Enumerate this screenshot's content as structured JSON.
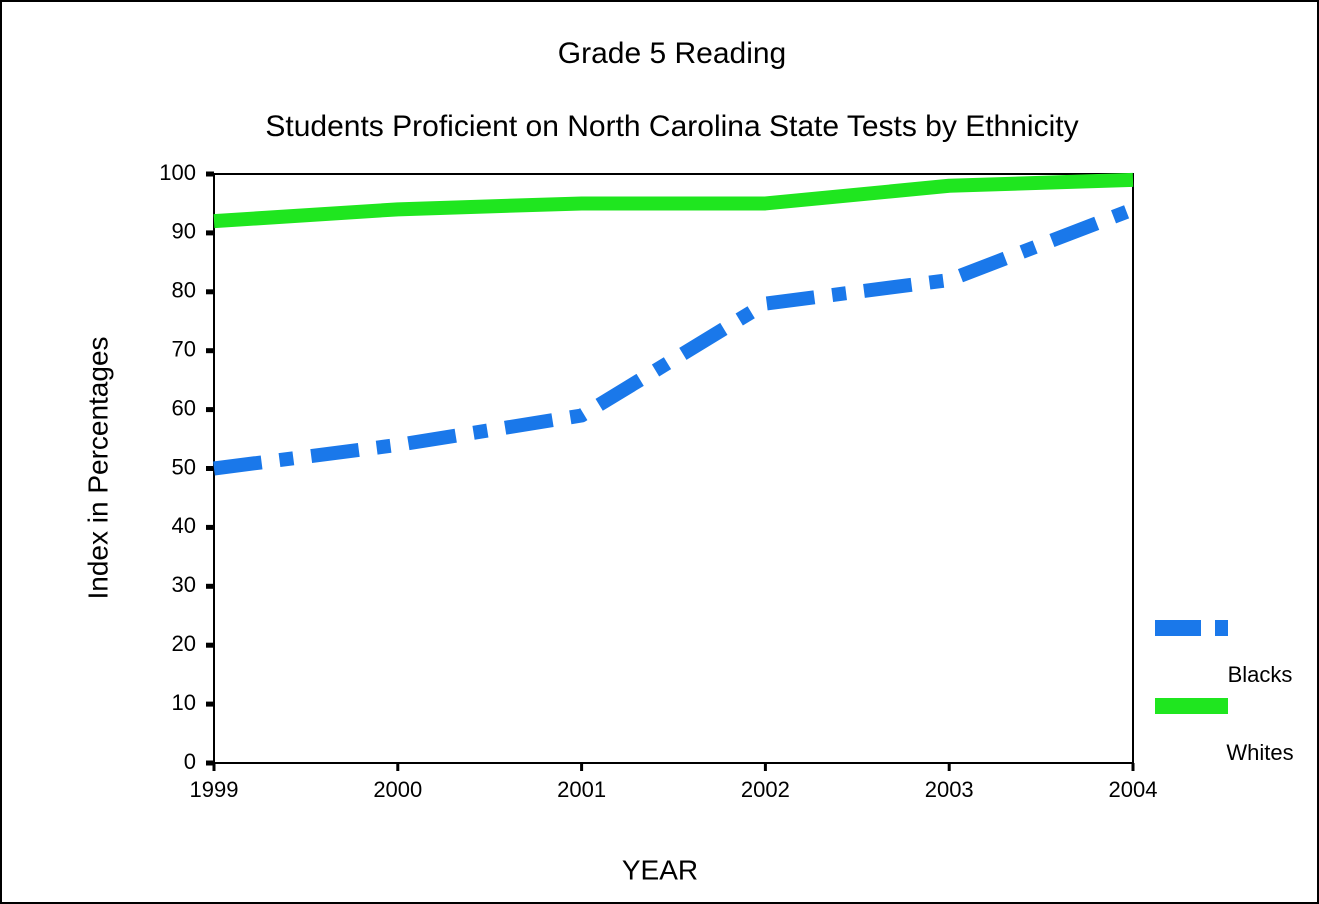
{
  "chart_data": {
    "type": "line",
    "title": "Grade 5 Reading",
    "subtitle": "Students Proficient on North Carolina State Tests by Ethnicity",
    "x_label": "YEAR",
    "y_label": "Index in Percentages",
    "x": [
      1999,
      2000,
      2001,
      2002,
      2003,
      2004
    ],
    "series": [
      {
        "name": "Blacks",
        "color": "#1a78ea",
        "style": "dash-dot",
        "values": [
          50,
          54,
          59,
          78,
          82,
          94
        ]
      },
      {
        "name": "Whites",
        "color": "#1fe61f",
        "style": "solid",
        "values": [
          92,
          94,
          95,
          95,
          98,
          99
        ]
      }
    ],
    "xlim": [
      1999,
      2004
    ],
    "xticks": [
      1999,
      2000,
      2001,
      2002,
      2003,
      2004
    ],
    "ylim": [
      0,
      100
    ],
    "yticks": [
      0,
      10,
      20,
      30,
      40,
      50,
      60,
      70,
      80,
      90,
      100
    ],
    "grid": false,
    "legend": "right"
  }
}
